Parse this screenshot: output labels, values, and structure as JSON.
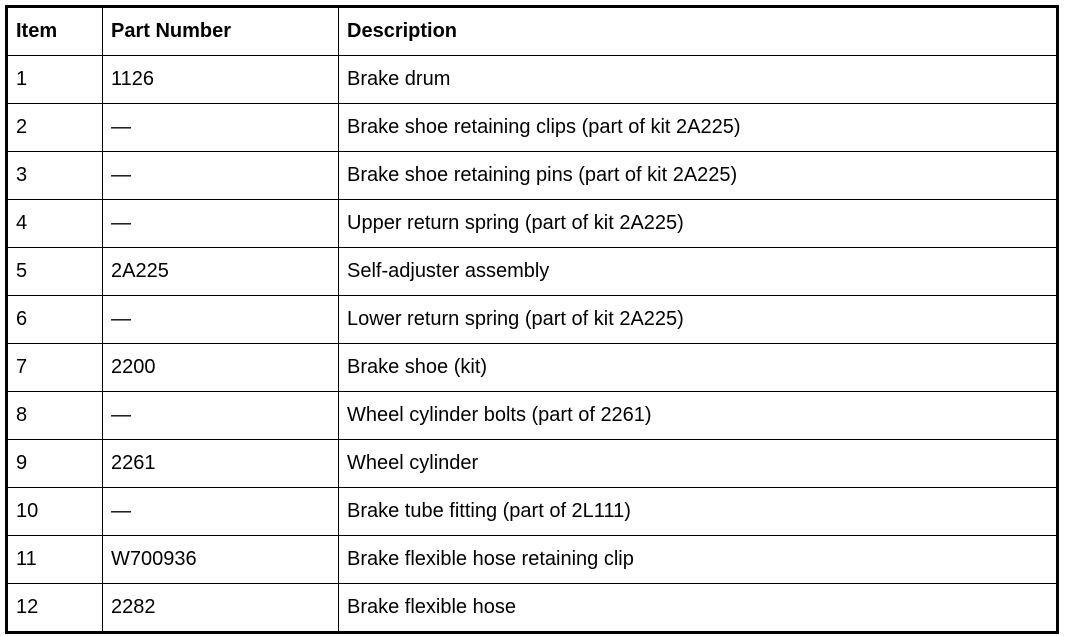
{
  "table": {
    "headers": [
      "Item",
      "Part Number",
      "Description"
    ],
    "rows": [
      [
        "1",
        "1126",
        "Brake drum"
      ],
      [
        "2",
        "—",
        "Brake shoe retaining clips (part of kit 2A225)"
      ],
      [
        "3",
        "—",
        "Brake shoe retaining pins (part of kit 2A225)"
      ],
      [
        "4",
        "—",
        "Upper return spring (part of kit 2A225)"
      ],
      [
        "5",
        "2A225",
        "Self-adjuster assembly"
      ],
      [
        "6",
        "—",
        "Lower return spring (part of kit 2A225)"
      ],
      [
        "7",
        "2200",
        "Brake shoe (kit)"
      ],
      [
        "8",
        "—",
        "Wheel cylinder bolts (part of 2261)"
      ],
      [
        "9",
        "2261",
        "Wheel cylinder"
      ],
      [
        "10",
        "—",
        "Brake tube fitting (part of 2L111)"
      ],
      [
        "11",
        "W700936",
        "Brake flexible hose retaining clip"
      ],
      [
        "12",
        "2282",
        "Brake flexible hose"
      ]
    ]
  }
}
